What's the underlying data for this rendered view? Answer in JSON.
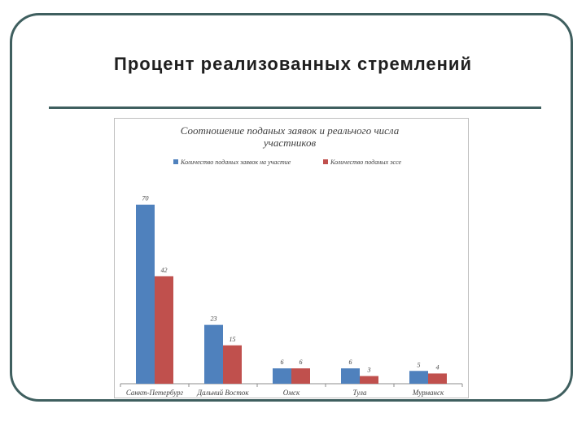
{
  "slide": {
    "title": "Процент реализованных стремлений"
  },
  "chart_data": {
    "type": "bar",
    "title": "Соотношение поданых заявок и реальчого числа участников",
    "title_lines": [
      "Соотношение поданых заявок и реальчого числа",
      "участников"
    ],
    "categories": [
      "Санкт-Петербург",
      "Дальний Восток",
      "Омск",
      "Тула",
      "Мурманск"
    ],
    "series": [
      {
        "name": "Количество поданых заявок на участие",
        "values": [
          70,
          23,
          6,
          6,
          5
        ],
        "color": "#4f81bd"
      },
      {
        "name": "Количество поданых эссе",
        "values": [
          42,
          15,
          6,
          3,
          4
        ],
        "color": "#c0504d"
      }
    ],
    "data_labels": [
      [
        "70",
        "23",
        "6",
        "6",
        "5"
      ],
      [
        "42",
        "15",
        "6",
        "3",
        "4"
      ]
    ],
    "ylim": [
      0,
      75
    ],
    "grid": false,
    "legend_position": "top"
  }
}
